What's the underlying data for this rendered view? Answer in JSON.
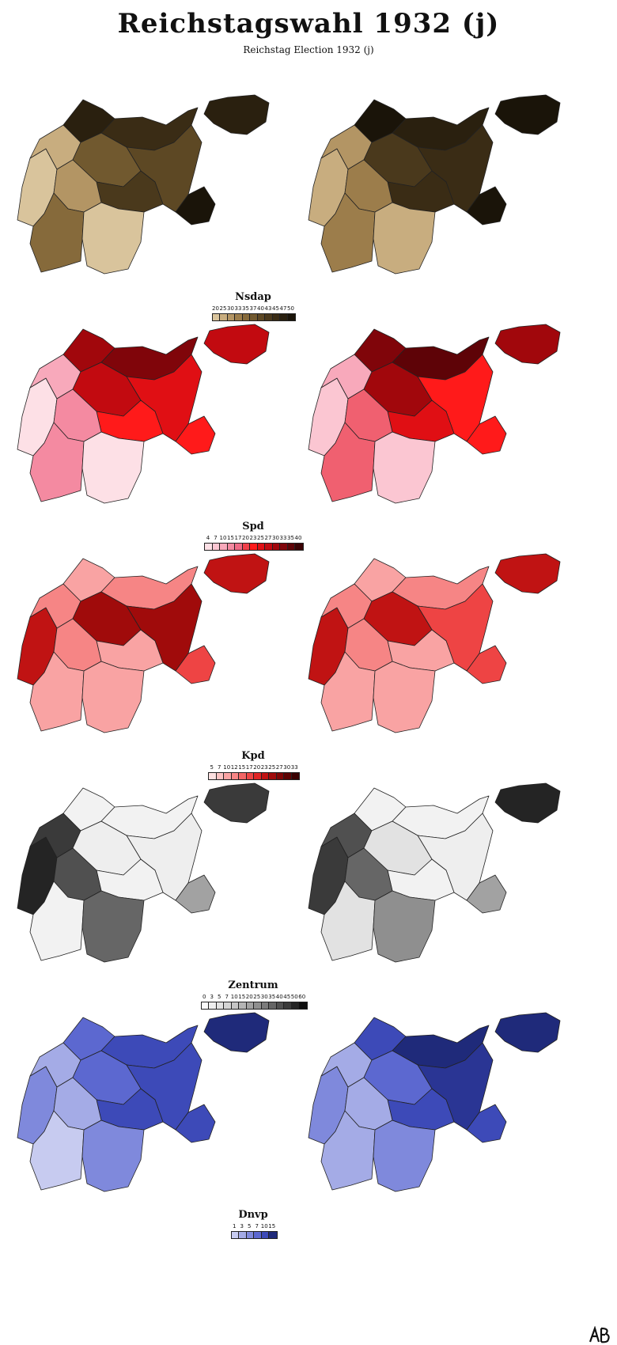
{
  "header": {
    "title": "Reichstagswahl 1932 (j)",
    "subtitle": "Reichstag Election 1932 (j)"
  },
  "panels": [
    {
      "party": "Nsdap",
      "ticks": [
        "20",
        "25",
        "30",
        "33",
        "35",
        "37",
        "40",
        "43",
        "45",
        "47",
        "50"
      ],
      "colors": [
        "#d9c49c",
        "#c8ad7f",
        "#b39564",
        "#9c7d4b",
        "#866a3b",
        "#71592f",
        "#5d4824",
        "#4a391c",
        "#3a2c15",
        "#2a200f",
        "#1a1409"
      ],
      "left_map_colors": [
        "#2a200f",
        "#3a2c15",
        "#5d4824",
        "#d9c49c",
        "#c8ad7f",
        "#71592f",
        "#4a391c",
        "#b39564",
        "#866a3b",
        "#d9c49c",
        "#2a200f",
        "#1a1409"
      ],
      "right_map_colors": [
        "#1a1409",
        "#2a200f",
        "#3a2c15",
        "#c8ad7f",
        "#b39564",
        "#4a391c",
        "#3a2c15",
        "#9c7d4b",
        "#9c7d4b",
        "#c8ad7f",
        "#1a1409",
        "#1a1409"
      ]
    },
    {
      "party": "Spd",
      "ticks": [
        "4",
        "7",
        "10",
        "15",
        "17",
        "20",
        "23",
        "25",
        "27",
        "30",
        "33",
        "35",
        "40"
      ],
      "colors": [
        "#fde0e6",
        "#fbc6d2",
        "#f8a9bb",
        "#f48aa1",
        "#ef6b86",
        "#f0404a",
        "#ff1a1a",
        "#e00f14",
        "#c20a10",
        "#a1070c",
        "#80050a",
        "#5e0307",
        "#3a0204"
      ],
      "left_map_colors": [
        "#a1070c",
        "#80050a",
        "#e00f14",
        "#fde0e6",
        "#f8a9bb",
        "#c20a10",
        "#ff1a1a",
        "#f48aa1",
        "#f48aa1",
        "#fde0e6",
        "#c20a10",
        "#ff1a1a"
      ],
      "right_map_colors": [
        "#80050a",
        "#5e0307",
        "#ff1a1a",
        "#fbc6d2",
        "#f8a9bb",
        "#a1070c",
        "#e00f14",
        "#f06070",
        "#f06070",
        "#fbc6d2",
        "#a1070c",
        "#ff1a1a"
      ]
    },
    {
      "party": "Kpd",
      "ticks": [
        "5",
        "7",
        "10",
        "12",
        "15",
        "17",
        "20",
        "23",
        "25",
        "27",
        "30",
        "33"
      ],
      "colors": [
        "#fde0e0",
        "#fcc2c2",
        "#f9a3a3",
        "#f68585",
        "#f26565",
        "#ee4444",
        "#e02525",
        "#c01313",
        "#a00b0b",
        "#800606",
        "#5e0303",
        "#3a0101"
      ],
      "left_map_colors": [
        "#f9a3a3",
        "#f68585",
        "#a00b0b",
        "#c01313",
        "#f68585",
        "#a00b0b",
        "#f9a3a3",
        "#f68585",
        "#f9a3a3",
        "#f9a3a3",
        "#c01313",
        "#ee4444"
      ],
      "right_map_colors": [
        "#f9a3a3",
        "#f68585",
        "#ee4444",
        "#c01313",
        "#f68585",
        "#c01313",
        "#f9a3a3",
        "#f68585",
        "#f9a3a3",
        "#f9a3a3",
        "#c01313",
        "#ee4444"
      ]
    },
    {
      "party": "Zentrum",
      "ticks": [
        "0",
        "3",
        "5",
        "7",
        "10",
        "15",
        "20",
        "25",
        "30",
        "35",
        "40",
        "45",
        "50",
        "60"
      ],
      "colors": [
        "#fafafa",
        "#eeeeee",
        "#e2e2e2",
        "#d4d4d4",
        "#c5c5c5",
        "#b4b4b4",
        "#a2a2a2",
        "#8f8f8f",
        "#7b7b7b",
        "#666666",
        "#505050",
        "#3a3a3a",
        "#242424",
        "#0f0f0f"
      ],
      "left_map_colors": [
        "#f2f2f2",
        "#f2f2f2",
        "#eeeeee",
        "#242424",
        "#3a3a3a",
        "#eeeeee",
        "#f2f2f2",
        "#505050",
        "#f2f2f2",
        "#666666",
        "#3a3a3a",
        "#a2a2a2"
      ],
      "right_map_colors": [
        "#f2f2f2",
        "#f2f2f2",
        "#eeeeee",
        "#3a3a3a",
        "#505050",
        "#e2e2e2",
        "#f2f2f2",
        "#666666",
        "#e2e2e2",
        "#8f8f8f",
        "#242424",
        "#a2a2a2"
      ]
    },
    {
      "party": "Dnvp",
      "ticks": [
        "1",
        "3",
        "5",
        "7",
        "10",
        "15"
      ],
      "colors": [
        "#c7cbf0",
        "#a4abe6",
        "#7f89dc",
        "#5c68d0",
        "#3d4ab8",
        "#1f2a7a"
      ],
      "left_map_colors": [
        "#5c68d0",
        "#3d4ab8",
        "#3d4ab8",
        "#7f89dc",
        "#a4abe6",
        "#5c68d0",
        "#3d4ab8",
        "#a4abe6",
        "#c7cbf0",
        "#7f89dc",
        "#1f2a7a",
        "#3d4ab8"
      ],
      "right_map_colors": [
        "#3d4ab8",
        "#1f2a7a",
        "#2a3594",
        "#7f89dc",
        "#a4abe6",
        "#5c68d0",
        "#3d4ab8",
        "#a4abe6",
        "#a4abe6",
        "#7f89dc",
        "#1f2a7a",
        "#3d4ab8"
      ]
    }
  ]
}
